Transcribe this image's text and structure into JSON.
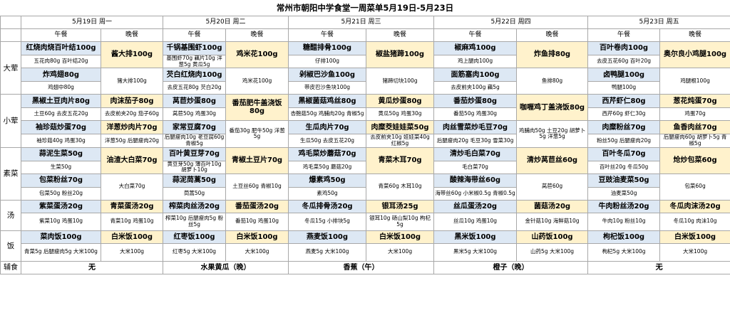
{
  "title": "常州市朝阳中学食堂一周菜单5月19日-5月23日",
  "days": [
    "5月19日  周一",
    "5月20日  周二",
    "5月21日  周三",
    "5月22日  周四",
    "5月23日  周五"
  ],
  "meals": {
    "lunch": "午餐",
    "dinner": "晚餐"
  },
  "categories": {
    "big": "大荤",
    "small": "小荤",
    "veg": "素菜",
    "soup": "汤",
    "rice": "饭",
    "side": "辅食"
  },
  "big1": [
    {
      "ld": "红烧肉烧百叶结100g",
      "li": "五花肉80g  百叶结20g",
      "dd": "酱大排100g",
      "di": ""
    },
    {
      "ld": "千锅基围虾100g",
      "li": "基围虾70g  藕片10g  洋葱5g  黄瓜5g",
      "dd": "鸡米花100g",
      "di": ""
    },
    {
      "ld": "糖醋排骨100g",
      "li": "仔排100g",
      "dd": "椒盐猪蹄100g",
      "di": ""
    },
    {
      "ld": "椒麻鸡100g",
      "li": "鸡上腿肉100g",
      "dd": "炸鱼排80g",
      "di": ""
    },
    {
      "ld": "百叶卷肉100g",
      "li": "去皮五花60g  百叶20g",
      "dd": "奥尔良小鸡腿100g",
      "di": ""
    }
  ],
  "big2": [
    {
      "ld": "炸鸡翅80g",
      "li": "鸡翅中80g",
      "dd": "",
      "di": "猪大排100g"
    },
    {
      "ld": "芡白红烧肉100g",
      "li": "去皮五花80g  芡白20g",
      "dd": "",
      "di": "鸡米花100g"
    },
    {
      "ld": "剁椒巴沙鱼100g",
      "li": "带皮巴沙鱼块100g",
      "dd": "",
      "di": "猪蹄切块100g"
    },
    {
      "ld": "面筋塞肉100g",
      "li": "去皮前夹100g  藕5g",
      "dd": "",
      "di": "鱼排80g"
    },
    {
      "ld": "卤鸭腿100g",
      "li": "鸭腿100g",
      "dd": "",
      "di": "鸡腿根100g"
    }
  ],
  "small1": [
    {
      "ld": "黑椒土豆肉片80g",
      "li": "土豆60g  去皮五花20g",
      "dd": "肉沫茄子80g",
      "di": "去皮前夹20g  茄子60g"
    },
    {
      "ld": "莴苣炒蛋80g",
      "li": "莴苣50g  鸡蛋30g",
      "dd": "番茄肥牛盖浇饭80g",
      "di": ""
    },
    {
      "ld": "黑椒菌菇鸡丝80g",
      "li": "杏鲍菇50g  鸡脯肉20g  青椒5g",
      "dd": "黄瓜炒蛋80g",
      "di": "黄瓜50g  鸡蛋30g"
    },
    {
      "ld": "番茄炒蛋80g",
      "li": "番茄50g  鸡蛋30g",
      "dd": "咖喱鸡丁盖浇饭80g",
      "di": ""
    },
    {
      "ld": "西芹虾仁80g",
      "li": "西芹60g  虾仁30g",
      "dd": "葱花炖蛋70g",
      "di": "鸡蛋70g"
    }
  ],
  "small2": [
    {
      "ld": "袖珍菇炒蛋70g",
      "li": "袖珍菇40g  鸡蛋30g",
      "dd": "洋葱炒肉片70g",
      "di": "洋葱50g  后腿瘦肉20g"
    },
    {
      "ld": "家常豆腐70g",
      "li": "后腿瘦肉10g  老豆腐60g  青椒5g",
      "dd": "",
      "di": "番茄30g  肥牛50g  洋葱5g"
    },
    {
      "ld": "生瓜肉片70g",
      "li": "生瓜50g  去皮五花20g",
      "dd": "肉糜茭娃娃菜50g",
      "di": "去皮前夹10g  娃娃菜40g  红椒5g"
    },
    {
      "ld": "肉丝雪菜炒毛豆70g",
      "li": "后腿瘦肉20g  毛豆30g  雪菜30g",
      "dd": "",
      "di": "鸡脯肉50g  土豆20g  胡萝卜5g  洋葱5g"
    },
    {
      "ld": "肉糜粉丝70g",
      "li": "粉丝50g  后腿瘦肉20g",
      "dd": "鱼香肉丝70g",
      "di": "后腿瘦肉60g  胡萝卜5g  青椒5g"
    }
  ],
  "veg1": [
    {
      "ld": "蒜泥生菜50g",
      "li": "生菜50g",
      "dd": "油渣大白菜70g",
      "di": ""
    },
    {
      "ld": "百叶黄豆芽70g",
      "li": "黄豆芽50g  薄百叶10g  胡萝卜10g",
      "dd": "青椒土豆片70g",
      "di": ""
    },
    {
      "ld": "鸡毛菜炒蘑菇70g",
      "li": "鸡毛菜50g  蘑菇20g",
      "dd": "青菜木耳70g",
      "di": ""
    },
    {
      "ld": "清炒毛白菜70g",
      "li": "毛白菜70g",
      "dd": "清炒莴苣丝60g",
      "di": ""
    },
    {
      "ld": "百叶冬瓜70g",
      "li": "百叶丝20g  冬瓜50g",
      "dd": "炝炒包菜60g",
      "di": ""
    }
  ],
  "veg2": [
    {
      "ld": "包菜粉丝70g",
      "li": "包菜50g  粉丝20g",
      "dd": "",
      "di": "大白菜70g"
    },
    {
      "ld": "蒜泥茼蒿50g",
      "li": "茼蒿50g",
      "dd": "",
      "di": "土豆丝60g  青椒10g"
    },
    {
      "ld": "爆素鸡50g",
      "li": "素鸡50g",
      "dd": "",
      "di": "青菜60g  木耳10g"
    },
    {
      "ld": "酸辣海带丝60g",
      "li": "海带丝60g  小米椒0.5g  青椒0.5g",
      "dd": "",
      "di": "莴苣60g"
    },
    {
      "ld": "豆豉油麦菜50g",
      "li": "油麦菜50g",
      "dd": "",
      "di": "包菜60g"
    }
  ],
  "soup": [
    {
      "ld": "紫菜蛋汤20g",
      "li": "紫菜10g  鸡蛋10g",
      "dd": "青菜蛋汤20g",
      "di": "青菜10g  鸡蛋10g"
    },
    {
      "ld": "榨菜肉丝汤20g",
      "li": "榨菜10g  后腿瘦肉5g  粉丝5g",
      "dd": "番茄蛋汤20g",
      "di": "番茄10g  鸡蛋10g"
    },
    {
      "ld": "冬瓜排骨汤20g",
      "li": "冬瓜15g  小排块5g",
      "dd": "银耳汤25g",
      "di": "银耳10g  砀山梨10g  枸杞5g"
    },
    {
      "ld": "丝瓜蛋汤20g",
      "li": "丝瓜10g  鸡蛋10g",
      "dd": "菌菇汤20g",
      "di": "金针菇10g  海鲜菇10g"
    },
    {
      "ld": "牛肉粉丝汤20g",
      "li": "牛肉10g  粉丝10g",
      "dd": "冬瓜肉沫汤20g",
      "di": "冬瓜10g  肉沫10g"
    }
  ],
  "rice": [
    {
      "ld": "菜肉饭100g",
      "li": "青菜5g  后腿瘦肉5g  大米100g",
      "dd": "白米饭100g",
      "di": "大米100g"
    },
    {
      "ld": "红枣饭100g",
      "li": "红枣5g  大米100g",
      "dd": "白米饭100g",
      "di": "大米100g"
    },
    {
      "ld": "燕麦饭100g",
      "li": "燕麦5g  大米100g",
      "dd": "白米饭100g",
      "di": "大米100g"
    },
    {
      "ld": "黑米饭100g",
      "li": "黑米5g  大米100g",
      "dd": "山药饭100g",
      "di": "山药5g  大米100g"
    },
    {
      "ld": "枸杞饭100g",
      "li": "枸杞5g  大米100g",
      "dd": "白米饭100g",
      "di": "大米100g"
    }
  ],
  "sides": [
    "无",
    "水果黄瓜（晚）",
    "香蕉（午）",
    "橙子（晚）",
    "无"
  ]
}
